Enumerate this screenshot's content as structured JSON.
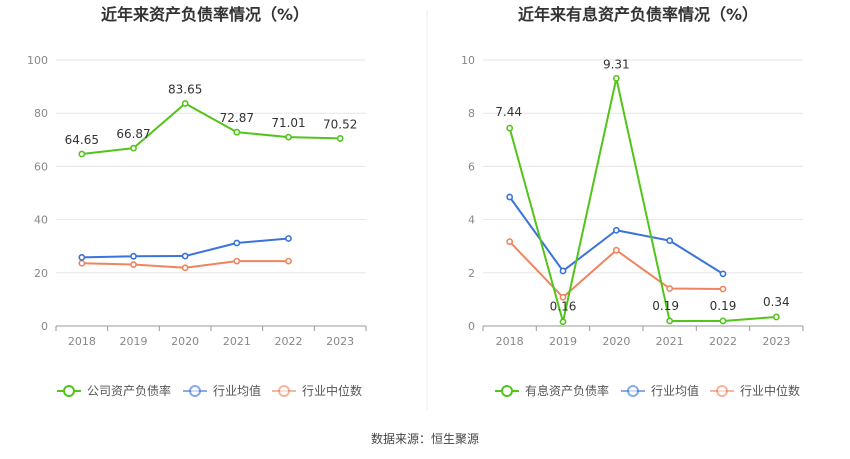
{
  "chart_data": [
    {
      "type": "line",
      "title": "近年来资产负债率情况（%）",
      "categories": [
        "2018",
        "2019",
        "2020",
        "2021",
        "2022",
        "2023"
      ],
      "ylim": [
        0,
        100
      ],
      "yticks": [
        0,
        20,
        40,
        60,
        80,
        100
      ],
      "grid": true,
      "legend_position": "bottom",
      "series": [
        {
          "name": "公司资产负债率",
          "color": "#52c41a",
          "values": [
            64.65,
            66.87,
            83.65,
            72.87,
            71.01,
            70.52
          ],
          "labels": [
            "64.65",
            "66.87",
            "83.65",
            "72.87",
            "71.01",
            "70.52"
          ]
        },
        {
          "name": "行业均值",
          "color": "#3a73d9",
          "values": [
            25.8,
            26.2,
            26.3,
            31.2,
            32.9,
            null
          ]
        },
        {
          "name": "行业中位数",
          "color": "#f0845f",
          "values": [
            23.6,
            23.1,
            21.9,
            24.4,
            24.4,
            null
          ]
        }
      ]
    },
    {
      "type": "line",
      "title": "近年来有息资产负债率情况（%）",
      "categories": [
        "2018",
        "2019",
        "2020",
        "2021",
        "2022",
        "2023"
      ],
      "ylim": [
        0,
        10
      ],
      "yticks": [
        0,
        2,
        4,
        6,
        8,
        10
      ],
      "grid": true,
      "legend_position": "bottom",
      "series": [
        {
          "name": "有息资产负债率",
          "color": "#52c41a",
          "values": [
            7.44,
            0.16,
            9.31,
            0.19,
            0.19,
            0.34
          ],
          "labels": [
            "7.44",
            "0.16",
            "9.31",
            "0.19",
            "0.19",
            "0.34"
          ]
        },
        {
          "name": "行业均值",
          "color": "#3a73d9",
          "values": [
            4.85,
            2.07,
            3.6,
            3.21,
            1.96,
            null
          ]
        },
        {
          "name": "行业中位数",
          "color": "#f0845f",
          "values": [
            3.17,
            1.08,
            2.85,
            1.41,
            1.39,
            null
          ]
        }
      ]
    }
  ],
  "footer": {
    "source": "数据来源：恒生聚源"
  }
}
